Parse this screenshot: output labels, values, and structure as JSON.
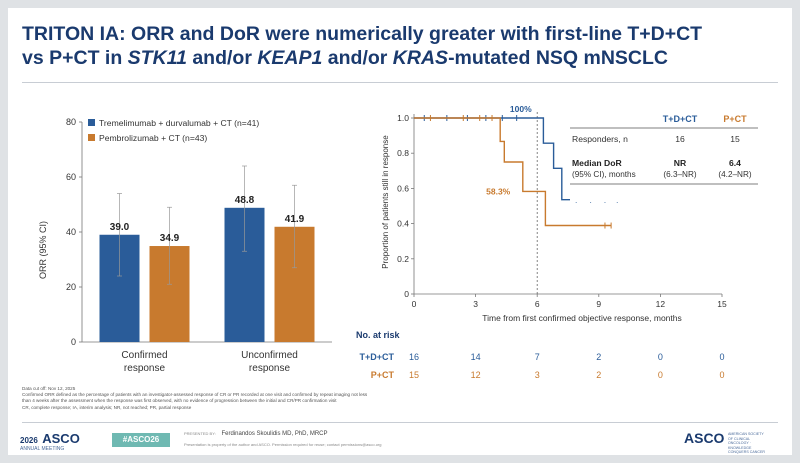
{
  "title": {
    "line1": "TRITON IA: ORR and DoR were numerically greater with first-line T+D+CT",
    "line2_prefix": "vs P+CT in ",
    "gene1": "STK11",
    "and_or_1": " and/or ",
    "gene2": "KEAP1",
    "and_or_2": " and/or ",
    "gene3": "KRAS",
    "line2_suffix": "-mutated NSQ mNSCLC"
  },
  "colors": {
    "td_ct": "#2a5c99",
    "p_ct": "#c87a2e",
    "title": "#1a3a6e"
  },
  "chart_data": [
    {
      "type": "bar",
      "ylabel": "ORR (95% CI)",
      "ylim": [
        0,
        80
      ],
      "yticks": [
        "0",
        "20",
        "40",
        "60",
        "80"
      ],
      "categories": [
        "Confirmed response",
        "Unconfirmed response"
      ],
      "category_lines": [
        [
          "Confirmed",
          "response"
        ],
        [
          "Unconfirmed",
          "response"
        ]
      ],
      "series": [
        {
          "name": "Tremelimumab + durvalumab + CT (n=41)",
          "values": [
            39.0,
            48.8
          ],
          "labels": [
            "39.0",
            "48.8"
          ],
          "ci": [
            [
              24,
              54
            ],
            [
              33,
              64
            ]
          ]
        },
        {
          "name": "Pembrolizumab + CT (n=43)",
          "values": [
            34.9,
            41.9
          ],
          "labels": [
            "34.9",
            "41.9"
          ],
          "ci": [
            [
              21,
              49
            ],
            [
              27,
              57
            ]
          ]
        }
      ],
      "legend_position": "top-left",
      "grid": false
    },
    {
      "type": "line",
      "ylabel": "Proportion of patients still in response",
      "xlabel": "Time from first confirmed objective response, months",
      "xlim": [
        0,
        15
      ],
      "ylim": [
        0,
        1.0
      ],
      "xticks": [
        "0",
        "3",
        "6",
        "9",
        "12",
        "15"
      ],
      "yticks": [
        "0",
        "0.2",
        "0.4",
        "0.6",
        "0.8",
        "1.0"
      ],
      "series": [
        {
          "name": "T+D+CT",
          "steps": [
            [
              0,
              1.0
            ],
            [
              6.3,
              1.0
            ],
            [
              6.3,
              0.857
            ],
            [
              6.8,
              0.857
            ],
            [
              6.8,
              0.714
            ],
            [
              7.2,
              0.714
            ],
            [
              7.2,
              0.536
            ],
            [
              9.9,
              0.536
            ]
          ],
          "censors": [
            [
              0.5,
              1.0
            ],
            [
              1.6,
              1.0
            ],
            [
              2.6,
              1.0
            ],
            [
              3.5,
              1.0
            ],
            [
              4.3,
              1.0
            ],
            [
              5.0,
              1.0
            ],
            [
              7.9,
              0.536
            ],
            [
              8.6,
              0.536
            ],
            [
              9.3,
              0.536
            ],
            [
              9.9,
              0.536
            ]
          ]
        },
        {
          "name": "P+CT",
          "steps": [
            [
              0,
              1.0
            ],
            [
              4.2,
              1.0
            ],
            [
              4.2,
              0.867
            ],
            [
              4.4,
              0.867
            ],
            [
              4.4,
              0.75
            ],
            [
              5.3,
              0.75
            ],
            [
              5.3,
              0.583
            ],
            [
              6.4,
              0.583
            ],
            [
              6.4,
              0.389
            ],
            [
              9.6,
              0.389
            ]
          ],
          "censors": [
            [
              0.8,
              1.0
            ],
            [
              2.4,
              1.0
            ],
            [
              3.2,
              1.0
            ],
            [
              3.8,
              1.0
            ],
            [
              9.3,
              0.389
            ],
            [
              9.6,
              0.389
            ]
          ]
        }
      ],
      "reference_line_x": 6.0,
      "annotations": [
        {
          "text": "100%",
          "x": 5.2,
          "y": 1.0,
          "series": "T+D+CT"
        },
        {
          "text": "58.3%",
          "x": 4.1,
          "y": 0.583,
          "series": "P+CT"
        }
      ],
      "grid": false
    }
  ],
  "summary_table": {
    "headers": [
      "",
      "T+D+CT",
      "P+CT"
    ],
    "rows": [
      {
        "label": "Responders, n",
        "td": "16",
        "p": "15"
      },
      {
        "label": "Median DoR",
        "label2": "(95% CI), months",
        "td": "NR",
        "td2": "(6.3–NR)",
        "p": "6.4",
        "p2": "(4.2–NR)"
      }
    ]
  },
  "risk_table": {
    "title": "No. at risk",
    "rows": [
      {
        "name": "T+D+CT",
        "values": [
          "16",
          "14",
          "7",
          "2",
          "0",
          "0"
        ]
      },
      {
        "name": "P+CT",
        "values": [
          "15",
          "12",
          "3",
          "2",
          "0",
          "0"
        ]
      }
    ]
  },
  "footnote": {
    "lines": [
      "Data cut off: Nov 12, 2025",
      "Confirmed ORR defined as the percentage of patients with an investigator-assessed response of CR or PR recorded at one visit and confirmed by repeat imaging not less",
      "than 4 weeks after the assessment when the response was first observed, with no evidence of progression between the initial and CR/PR confirmation visit",
      "CR, complete response; IA, interim analysis; NR, not reached; PR, partial response"
    ]
  },
  "footer": {
    "year": "2026",
    "brand": "ASCO",
    "meeting": "ANNUAL MEETING",
    "hashtag": "#ASCO26",
    "presented_by": "PRESENTED BY:",
    "presenter": "Ferdinandos Skoulidis MD, PhD, MRCP",
    "permission": "Presentation is property of the author and ASCO. Permission required for reuse; contact permissions@asco.org",
    "right_brand": "ASCO",
    "right_tagline": "AMERICAN SOCIETY OF CLINICAL ONCOLOGY · KNOWLEDGE CONQUERS CANCER"
  }
}
